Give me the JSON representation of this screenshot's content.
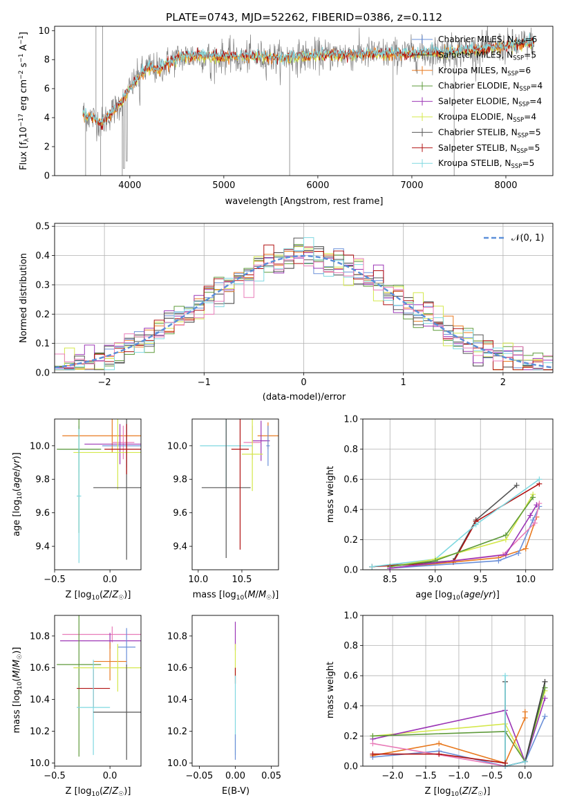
{
  "colors": {
    "chabrier_miles": "#6a8fd8",
    "salpeter_miles": "#3a3a3a",
    "kroupa_miles": "#e8791e",
    "chabrier_elodie": "#5e9a3a",
    "salpeter_elodie": "#9b35b5",
    "kroupa_elodie": "#d4e84a",
    "chabrier_stelib": "#555555",
    "salpeter_stelib": "#b01010",
    "kroupa_stelib": "#7fd8e0",
    "pink": "#e87bb8",
    "gaussian": "#5b8fd9",
    "data": "#7f7f7f"
  },
  "chart_data": [
    {
      "id": "spectrum",
      "type": "line",
      "title": "PLATE=0743, MJD=52262, FIBERID=0386, z=0.112",
      "xlabel": "wavelength [Angstrom, rest frame]",
      "ylabel": "Flux [f",
      "ylabel_sub": "λ",
      "ylabel_rest": "10",
      "ylabel_exp1": "−17",
      "ylabel_tail": " erg cm",
      "ylabel_exp2": "−2",
      "ylabel_tail2": " s",
      "ylabel_exp3": "−1",
      "ylabel_tail3": " A",
      "ylabel_exp4": "−1",
      "ylabel_end": "]",
      "xlim": [
        3200,
        8500
      ],
      "ylim": [
        0,
        10.3
      ],
      "xticks": [
        4000,
        5000,
        6000,
        7000,
        8000
      ],
      "yticks": [
        0,
        2,
        4,
        6,
        8,
        10
      ],
      "continuum": {
        "x": [
          3500,
          3600,
          3700,
          3800,
          3900,
          4000,
          4100,
          4200,
          4300,
          4400,
          4500,
          4700,
          5000,
          5300,
          5600,
          6000,
          6500,
          7000,
          7500,
          8000,
          8300
        ],
        "y": [
          4.3,
          4.0,
          3.6,
          4.3,
          5.0,
          6.0,
          6.9,
          7.5,
          7.3,
          7.8,
          8.1,
          8.3,
          8.2,
          8.2,
          8.1,
          8.3,
          8.4,
          8.4,
          8.6,
          8.9,
          9.2
        ]
      },
      "legend": [
        {
          "name": "Chabrier MILES, N",
          "sub": "SSP",
          "val": "=6"
        },
        {
          "name": "Salpeter MILES, N",
          "sub": "SSP",
          "val": "=5"
        },
        {
          "name": "Kroupa MILES, N",
          "sub": "SSP",
          "val": "=6"
        },
        {
          "name": "Chabrier ELODIE, N",
          "sub": "SSP",
          "val": "=4"
        },
        {
          "name": "Salpeter ELODIE, N",
          "sub": "SSP",
          "val": "=4"
        },
        {
          "name": "Kroupa ELODIE, N",
          "sub": "SSP",
          "val": "=4"
        },
        {
          "name": "Chabrier STELIB, N",
          "sub": "SSP",
          "val": "=5"
        },
        {
          "name": "Salpeter STELIB, N",
          "sub": "SSP",
          "val": "=5"
        },
        {
          "name": "Kroupa STELIB, N",
          "sub": "SSP",
          "val": "=5"
        }
      ]
    },
    {
      "id": "residuals",
      "type": "line",
      "xlabel": "(data-model)/error",
      "ylabel": "Normed distribution",
      "xlim": [
        -2.5,
        2.5
      ],
      "ylim": [
        0,
        0.51
      ],
      "xticks": [
        -2,
        -1,
        0,
        1,
        2
      ],
      "xtick_labels": [
        "−2",
        "−1",
        "0",
        "1",
        "2"
      ],
      "yticks": [
        0.0,
        0.1,
        0.2,
        0.3,
        0.4,
        0.5
      ],
      "ytick_labels": [
        "0.0",
        "0.1",
        "0.2",
        "0.3",
        "0.4",
        "0.5"
      ],
      "gaussian_label": "𝒩(0, 1)",
      "grid": true
    },
    {
      "id": "age_vs_Z",
      "type": "scatter",
      "xlabel": "Z [log10(Z/Z☉)]",
      "ylabel": "age  [log10(age/yr)]",
      "xlim": [
        -0.5,
        0.28
      ],
      "ylim": [
        9.26,
        10.16
      ],
      "xticks": [
        -0.5,
        0.0
      ],
      "xtick_labels": [
        "−0.5",
        "0.0"
      ],
      "yticks": [
        9.4,
        9.6,
        9.8,
        10.0
      ],
      "ytick_labels": [
        "9.4",
        "9.6",
        "9.8",
        "10.0"
      ],
      "points": [
        {
          "x": 0.02,
          "y": 10.06,
          "xerr": 0.45,
          "yerr": 0.1,
          "c": "kroupa_miles"
        },
        {
          "x": 0.12,
          "y": 10.02,
          "xerr": 0.1,
          "yerr": 0.1,
          "c": "pink"
        },
        {
          "x": 0.09,
          "y": 10.01,
          "xerr": 0.32,
          "yerr": 0.12,
          "c": "salpeter_elodie"
        },
        {
          "x": 0.15,
          "y": 10.0,
          "xerr": 0.22,
          "yerr": 0.13,
          "c": "chabrier_miles"
        },
        {
          "x": -0.28,
          "y": 9.98,
          "xerr": 0.18,
          "yerr": 0.14,
          "c": "kroupa_stelib"
        },
        {
          "x": 0.07,
          "y": 9.96,
          "xerr": 0.4,
          "yerr": 0.22,
          "c": "kroupa_elodie"
        },
        {
          "x": -0.28,
          "y": 9.98,
          "xerr": 0.2,
          "yerr": 0.5,
          "c": "chabrier_elodie"
        },
        {
          "x": 0.15,
          "y": 9.75,
          "xerr": 0.3,
          "yerr": 0.43,
          "c": "chabrier_stelib"
        },
        {
          "x": 0.15,
          "y": 9.98,
          "xerr": 0.2,
          "yerr": 0.15,
          "c": "salpeter_stelib"
        },
        {
          "x": -0.28,
          "y": 9.7,
          "xerr": 0.02,
          "yerr": 0.4,
          "c": "kroupa_stelib"
        }
      ]
    },
    {
      "id": "age_vs_mass",
      "type": "scatter",
      "xlabel": "mass [log10(M/M☉)]",
      "xlim": [
        9.93,
        10.92
      ],
      "ylim": [
        9.26,
        10.16
      ],
      "xticks": [
        10.0,
        10.5
      ],
      "xtick_labels": [
        "10.0",
        "10.5"
      ],
      "yticks": [
        9.4,
        9.6,
        9.8,
        10.0
      ],
      "ytick_labels": [
        "9.4",
        "9.6",
        "9.8",
        "10.0"
      ],
      "points": [
        {
          "x": 10.8,
          "y": 10.06,
          "xerr": 0.12,
          "yerr": 0.08,
          "c": "kroupa_miles"
        },
        {
          "x": 10.72,
          "y": 10.03,
          "xerr": 0.1,
          "yerr": 0.12,
          "c": "salpeter_elodie"
        },
        {
          "x": 10.62,
          "y": 10.02,
          "xerr": 0.1,
          "yerr": 0.1,
          "c": "pink"
        },
        {
          "x": 10.62,
          "y": 9.95,
          "xerr": 0.12,
          "yerr": 0.22,
          "c": "kroupa_elodie"
        },
        {
          "x": 10.32,
          "y": 10.0,
          "xerr": 0.3,
          "yerr": 0.25,
          "c": "kroupa_stelib"
        },
        {
          "x": 10.32,
          "y": 9.75,
          "xerr": 0.28,
          "yerr": 0.42,
          "c": "chabrier_stelib"
        },
        {
          "x": 10.48,
          "y": 9.98,
          "xerr": 0.1,
          "yerr": 0.6,
          "c": "salpeter_stelib"
        },
        {
          "x": 10.8,
          "y": 10.0,
          "xerr": 0.02,
          "yerr": 0.12,
          "c": "chabrier_miles"
        }
      ]
    },
    {
      "id": "weight_vs_age",
      "type": "line",
      "xlabel": "age  [log10(age/yr)]",
      "ylabel": "mass weight",
      "xlim": [
        8.2,
        10.3
      ],
      "ylim": [
        0,
        1.0
      ],
      "xticks": [
        8.5,
        9.0,
        9.5,
        10.0
      ],
      "xtick_labels": [
        "8.5",
        "9.0",
        "9.5",
        "10.0"
      ],
      "yticks": [
        0.0,
        0.2,
        0.4,
        0.6,
        0.8,
        1.0
      ],
      "ytick_labels": [
        "0.0",
        "0.2",
        "0.4",
        "0.6",
        "0.8",
        "1.0"
      ],
      "grid": true,
      "series": [
        {
          "c": "chabrier_stelib",
          "x": [
            8.3,
            9.2,
            9.45,
            9.9
          ],
          "y": [
            0.02,
            0.06,
            0.33,
            0.56
          ]
        },
        {
          "c": "salpeter_stelib",
          "x": [
            8.3,
            9.2,
            9.45,
            10.15
          ],
          "y": [
            0.02,
            0.05,
            0.32,
            0.57
          ]
        },
        {
          "c": "kroupa_stelib",
          "x": [
            8.3,
            9.0,
            9.45,
            10.15
          ],
          "y": [
            0.02,
            0.07,
            0.3,
            0.6
          ]
        },
        {
          "c": "kroupa_elodie",
          "x": [
            8.5,
            9.0,
            9.78,
            10.08
          ],
          "y": [
            0.02,
            0.07,
            0.2,
            0.5
          ]
        },
        {
          "c": "chabrier_elodie",
          "x": [
            8.5,
            9.0,
            9.78,
            10.08
          ],
          "y": [
            0.02,
            0.06,
            0.23,
            0.48
          ]
        },
        {
          "c": "kroupa_miles",
          "x": [
            8.5,
            9.7,
            10.0,
            10.12
          ],
          "y": [
            0.01,
            0.08,
            0.14,
            0.35
          ]
        },
        {
          "c": "chabrier_miles",
          "x": [
            8.5,
            9.7,
            9.92,
            10.08,
            10.15
          ],
          "y": [
            0.01,
            0.06,
            0.11,
            0.33,
            0.42
          ]
        },
        {
          "c": "pink",
          "x": [
            8.5,
            9.75,
            10.1,
            10.15
          ],
          "y": [
            0.01,
            0.1,
            0.31,
            0.44
          ]
        },
        {
          "c": "salpeter_elodie",
          "x": [
            8.5,
            9.78,
            10.05,
            10.12
          ],
          "y": [
            0.01,
            0.1,
            0.36,
            0.43
          ]
        }
      ]
    },
    {
      "id": "mass_vs_Z",
      "type": "scatter",
      "xlabel": "Z [log10(Z/Z☉)]",
      "ylabel": "mass [log10(M/M☉)]",
      "xlim": [
        -0.5,
        0.28
      ],
      "ylim": [
        9.98,
        10.93
      ],
      "xticks": [
        -0.5,
        0.0
      ],
      "xtick_labels": [
        "−0.5",
        "0.0"
      ],
      "yticks": [
        10.0,
        10.2,
        10.4,
        10.6,
        10.8
      ],
      "ytick_labels": [
        "10.0",
        "10.2",
        "10.4",
        "10.6",
        "10.8"
      ],
      "points": [
        {
          "x": 0.02,
          "y": 10.81,
          "xerr": 0.45,
          "yerr": 0.05,
          "c": "pink"
        },
        {
          "x": 0.0,
          "y": 10.77,
          "xerr": 0.45,
          "yerr": 0.05,
          "c": "salpeter_elodie"
        },
        {
          "x": 0.15,
          "y": 10.73,
          "xerr": 0.08,
          "yerr": 0.12,
          "c": "chabrier_miles"
        },
        {
          "x": 0.0,
          "y": 10.64,
          "xerr": 0.15,
          "yerr": 0.12,
          "c": "kroupa_miles"
        },
        {
          "x": -0.28,
          "y": 10.62,
          "xerr": 0.2,
          "yerr": 0.58,
          "c": "chabrier_elodie"
        },
        {
          "x": 0.07,
          "y": 10.6,
          "xerr": 0.4,
          "yerr": 0.15,
          "c": "kroupa_elodie"
        },
        {
          "x": -0.15,
          "y": 10.47,
          "xerr": 0.15,
          "yerr": 0.12,
          "c": "salpeter_stelib"
        },
        {
          "x": -0.15,
          "y": 10.35,
          "xerr": 0.15,
          "yerr": 0.3,
          "c": "kroupa_stelib"
        },
        {
          "x": 0.15,
          "y": 10.32,
          "xerr": 0.3,
          "yerr": 0.3,
          "c": "chabrier_stelib"
        }
      ]
    },
    {
      "id": "mass_vs_ebv",
      "type": "scatter",
      "xlabel": "E(B-V)",
      "xlim": [
        -0.06,
        0.06
      ],
      "ylim": [
        9.98,
        10.93
      ],
      "xticks": [
        -0.05,
        0.0,
        0.05
      ],
      "xtick_labels": [
        "−0.05",
        "0.00",
        "0.05"
      ],
      "yticks": [
        10.0,
        10.2,
        10.4,
        10.6,
        10.8
      ],
      "ytick_labels": [
        "10.0",
        "10.2",
        "10.4",
        "10.6",
        "10.8"
      ],
      "points": [
        {
          "x": 0.0,
          "y": 10.8,
          "xerr": 0,
          "yerr": 0.09,
          "c": "salpeter_elodie"
        },
        {
          "x": 0.0,
          "y": 10.65,
          "xerr": 0,
          "yerr": 0.1,
          "c": "kroupa_elodie"
        },
        {
          "x": 0.0,
          "y": 10.55,
          "xerr": 0,
          "yerr": 0.05,
          "c": "salpeter_stelib"
        },
        {
          "x": 0.0,
          "y": 10.3,
          "xerr": 0,
          "yerr": 0.25,
          "c": "kroupa_stelib"
        },
        {
          "x": 0.0,
          "y": 10.1,
          "xerr": 0,
          "yerr": 0.08,
          "c": "chabrier_miles"
        }
      ]
    },
    {
      "id": "weight_vs_Z",
      "type": "line",
      "xlabel": "Z [log10(Z/Z☉)]",
      "ylabel": "mass weight",
      "xlim": [
        -2.45,
        0.42
      ],
      "ylim": [
        0,
        1.0
      ],
      "xticks": [
        -2.0,
        -1.5,
        -1.0,
        -0.5,
        0.0
      ],
      "xtick_labels": [
        "−2.0",
        "−1.5",
        "−1.0",
        "−0.5",
        "0.0"
      ],
      "yticks": [
        0.0,
        0.2,
        0.4,
        0.6,
        0.8,
        1.0
      ],
      "ytick_labels": [
        "0.0",
        "0.2",
        "0.4",
        "0.6",
        "0.8",
        "1.0"
      ],
      "grid": true,
      "series": [
        {
          "c": "kroupa_elodie",
          "x": [
            -2.3,
            -0.3,
            0.0,
            0.3
          ],
          "y": [
            0.2,
            0.28,
            0.03,
            0.5
          ]
        },
        {
          "c": "salpeter_elodie",
          "x": [
            -2.3,
            -0.3,
            0.0,
            0.3
          ],
          "y": [
            0.18,
            0.37,
            0.03,
            0.45
          ]
        },
        {
          "c": "chabrier_elodie",
          "x": [
            -2.3,
            -0.3,
            0.0,
            0.3
          ],
          "y": [
            0.2,
            0.23,
            0.03,
            0.52
          ]
        },
        {
          "c": "kroupa_miles",
          "x": [
            -2.3,
            -1.3,
            -0.3,
            0.0,
            0.0
          ],
          "y": [
            0.07,
            0.15,
            0.02,
            0.32,
            0.36
          ]
        },
        {
          "c": "chabrier_miles",
          "x": [
            -2.3,
            -1.3,
            -0.3,
            0.0,
            0.3
          ],
          "y": [
            0.06,
            0.1,
            0.0,
            0.03,
            0.33
          ]
        },
        {
          "c": "pink",
          "x": [
            -2.3,
            -0.3,
            0.0
          ],
          "y": [
            0.15,
            0.0,
            0.03
          ]
        },
        {
          "c": "salpeter_miles",
          "x": [
            -0.3,
            -0.3,
            0.0,
            0.3
          ],
          "y": [
            0.56,
            0.0,
            0.03,
            0.56
          ]
        },
        {
          "c": "kroupa_stelib",
          "x": [
            -0.3,
            -0.3,
            0.0
          ],
          "y": [
            0.6,
            0.0,
            0.03
          ]
        },
        {
          "c": "salpeter_stelib",
          "x": [
            -2.3,
            -1.3,
            -0.3
          ],
          "y": [
            0.08,
            0.08,
            0.02
          ]
        }
      ]
    }
  ]
}
